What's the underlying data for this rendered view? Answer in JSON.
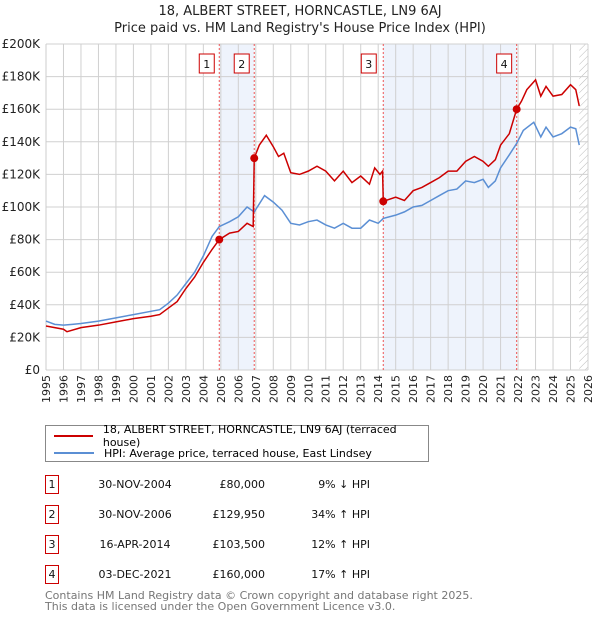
{
  "title_line1": "18, ALBERT STREET, HORNCASTLE, LN9 6AJ",
  "title_line2": "Price paid vs. HM Land Registry's House Price Index (HPI)",
  "colors": {
    "property": "#cc0000",
    "hpi": "#5b8fd4",
    "shade": "#eef3fc"
  },
  "chart_data": {
    "type": "line",
    "title": "Price paid vs. HM Land Registry's House Price Index (HPI)",
    "xlim": [
      1995,
      2026
    ],
    "ylim": [
      0,
      200000
    ],
    "x_ticks": [
      "1995",
      "1996",
      "1997",
      "1998",
      "1999",
      "2000",
      "2001",
      "2002",
      "2003",
      "2004",
      "2005",
      "2006",
      "2007",
      "2008",
      "2009",
      "2010",
      "2011",
      "2012",
      "2013",
      "2014",
      "2015",
      "2016",
      "2017",
      "2018",
      "2019",
      "2020",
      "2021",
      "2022",
      "2023",
      "2024",
      "2025",
      "2026"
    ],
    "y_ticks": [
      {
        "v": 0,
        "l": "£0"
      },
      {
        "v": 20000,
        "l": "£20K"
      },
      {
        "v": 40000,
        "l": "£40K"
      },
      {
        "v": 60000,
        "l": "£60K"
      },
      {
        "v": 80000,
        "l": "£80K"
      },
      {
        "v": 100000,
        "l": "£100K"
      },
      {
        "v": 120000,
        "l": "£120K"
      },
      {
        "v": 140000,
        "l": "£140K"
      },
      {
        "v": 160000,
        "l": "£160K"
      },
      {
        "v": 180000,
        "l": "£180K"
      },
      {
        "v": 200000,
        "l": "£200K"
      }
    ],
    "grid": true,
    "shaded_periods": [
      [
        2004.91,
        2006.91
      ],
      [
        2014.29,
        2021.92
      ]
    ],
    "forecast_hatch_from": 2025.5,
    "series": [
      {
        "name": "18, ALBERT STREET, HORNCASTLE, LN9 6AJ (terraced house)",
        "color": "#cc0000",
        "points": [
          [
            1995,
            27
          ],
          [
            1996,
            25
          ],
          [
            1996.2,
            23.5
          ],
          [
            1997,
            26
          ],
          [
            1998,
            27.5
          ],
          [
            1999,
            29.5
          ],
          [
            2000,
            31.5
          ],
          [
            2001,
            33
          ],
          [
            2001.5,
            34
          ],
          [
            2002,
            38
          ],
          [
            2002.5,
            42
          ],
          [
            2003,
            50
          ],
          [
            2003.5,
            57
          ],
          [
            2004,
            66
          ],
          [
            2004.5,
            74
          ],
          [
            2004.91,
            80
          ],
          [
            2005.5,
            84
          ],
          [
            2006,
            85
          ],
          [
            2006.5,
            90
          ],
          [
            2006.85,
            88
          ],
          [
            2006.91,
            130
          ],
          [
            2007.2,
            138
          ],
          [
            2007.6,
            144
          ],
          [
            2008,
            137
          ],
          [
            2008.3,
            131
          ],
          [
            2008.6,
            133
          ],
          [
            2009,
            121
          ],
          [
            2009.5,
            120
          ],
          [
            2010,
            122
          ],
          [
            2010.5,
            125
          ],
          [
            2011,
            122
          ],
          [
            2011.5,
            116
          ],
          [
            2012,
            122
          ],
          [
            2012.5,
            115
          ],
          [
            2013,
            119
          ],
          [
            2013.5,
            114
          ],
          [
            2013.8,
            124
          ],
          [
            2014.1,
            120
          ],
          [
            2014.25,
            122
          ],
          [
            2014.29,
            103.5
          ],
          [
            2015,
            106
          ],
          [
            2015.5,
            104
          ],
          [
            2016,
            110
          ],
          [
            2016.5,
            112
          ],
          [
            2017,
            115
          ],
          [
            2017.5,
            118
          ],
          [
            2018,
            122
          ],
          [
            2018.5,
            122
          ],
          [
            2019,
            128
          ],
          [
            2019.5,
            131
          ],
          [
            2020,
            128
          ],
          [
            2020.3,
            125
          ],
          [
            2020.7,
            129
          ],
          [
            2021,
            138
          ],
          [
            2021.5,
            145
          ],
          [
            2021.92,
            160
          ],
          [
            2022.2,
            165
          ],
          [
            2022.5,
            172
          ],
          [
            2023,
            178
          ],
          [
            2023.3,
            168
          ],
          [
            2023.6,
            174
          ],
          [
            2024,
            168
          ],
          [
            2024.5,
            169
          ],
          [
            2025,
            175
          ],
          [
            2025.3,
            172
          ],
          [
            2025.5,
            162
          ]
        ]
      },
      {
        "name": "HPI: Average price, terraced house, East Lindsey",
        "color": "#5b8fd4",
        "points": [
          [
            1995,
            30
          ],
          [
            1995.5,
            28
          ],
          [
            1996,
            27.5
          ],
          [
            1996.5,
            28
          ],
          [
            1997,
            28.5
          ],
          [
            1998,
            30
          ],
          [
            1999,
            32
          ],
          [
            2000,
            34
          ],
          [
            2001,
            36
          ],
          [
            2001.5,
            37
          ],
          [
            2002,
            41
          ],
          [
            2002.5,
            46
          ],
          [
            2003,
            53
          ],
          [
            2003.5,
            60
          ],
          [
            2004,
            70
          ],
          [
            2004.5,
            82
          ],
          [
            2004.91,
            88
          ],
          [
            2005.5,
            91
          ],
          [
            2006,
            94
          ],
          [
            2006.5,
            100
          ],
          [
            2006.91,
            97
          ],
          [
            2007.5,
            107
          ],
          [
            2008,
            103
          ],
          [
            2008.5,
            98
          ],
          [
            2009,
            90
          ],
          [
            2009.5,
            89
          ],
          [
            2010,
            91
          ],
          [
            2010.5,
            92
          ],
          [
            2011,
            89
          ],
          [
            2011.5,
            87
          ],
          [
            2012,
            90
          ],
          [
            2012.5,
            87
          ],
          [
            2013,
            87
          ],
          [
            2013.5,
            92
          ],
          [
            2014,
            90
          ],
          [
            2014.29,
            93
          ],
          [
            2015,
            95
          ],
          [
            2015.5,
            97
          ],
          [
            2016,
            100
          ],
          [
            2016.5,
            101
          ],
          [
            2017,
            104
          ],
          [
            2017.5,
            107
          ],
          [
            2018,
            110
          ],
          [
            2018.5,
            111
          ],
          [
            2019,
            116
          ],
          [
            2019.5,
            115
          ],
          [
            2020,
            117
          ],
          [
            2020.3,
            112
          ],
          [
            2020.7,
            116
          ],
          [
            2021,
            124
          ],
          [
            2021.5,
            132
          ],
          [
            2021.92,
            139
          ],
          [
            2022.3,
            147
          ],
          [
            2022.9,
            152
          ],
          [
            2023.3,
            143
          ],
          [
            2023.6,
            149
          ],
          [
            2024,
            143
          ],
          [
            2024.5,
            145
          ],
          [
            2025,
            149
          ],
          [
            2025.3,
            148
          ],
          [
            2025.5,
            138
          ]
        ]
      }
    ],
    "sales": [
      {
        "label": "1",
        "x": 2004.91,
        "y": 80000
      },
      {
        "label": "2",
        "x": 2006.91,
        "y": 129950
      },
      {
        "label": "3",
        "x": 2014.29,
        "y": 103500
      },
      {
        "label": "4",
        "x": 2021.92,
        "y": 160000
      }
    ]
  },
  "legend": {
    "property": "18, ALBERT STREET, HORNCASTLE, LN9 6AJ (terraced house)",
    "hpi": "HPI: Average price, terraced house, East Lindsey"
  },
  "transactions": [
    {
      "num": "1",
      "date": "30-NOV-2004",
      "price": "£80,000",
      "hpi": "9% ↓ HPI"
    },
    {
      "num": "2",
      "date": "30-NOV-2006",
      "price": "£129,950",
      "hpi": "34% ↑ HPI"
    },
    {
      "num": "3",
      "date": "16-APR-2014",
      "price": "£103,500",
      "hpi": "12% ↑ HPI"
    },
    {
      "num": "4",
      "date": "03-DEC-2021",
      "price": "£160,000",
      "hpi": "17% ↑ HPI"
    }
  ],
  "footer": {
    "line1": "Contains HM Land Registry data © Crown copyright and database right 2025.",
    "line2": "This data is licensed under the Open Government Licence v3.0."
  }
}
